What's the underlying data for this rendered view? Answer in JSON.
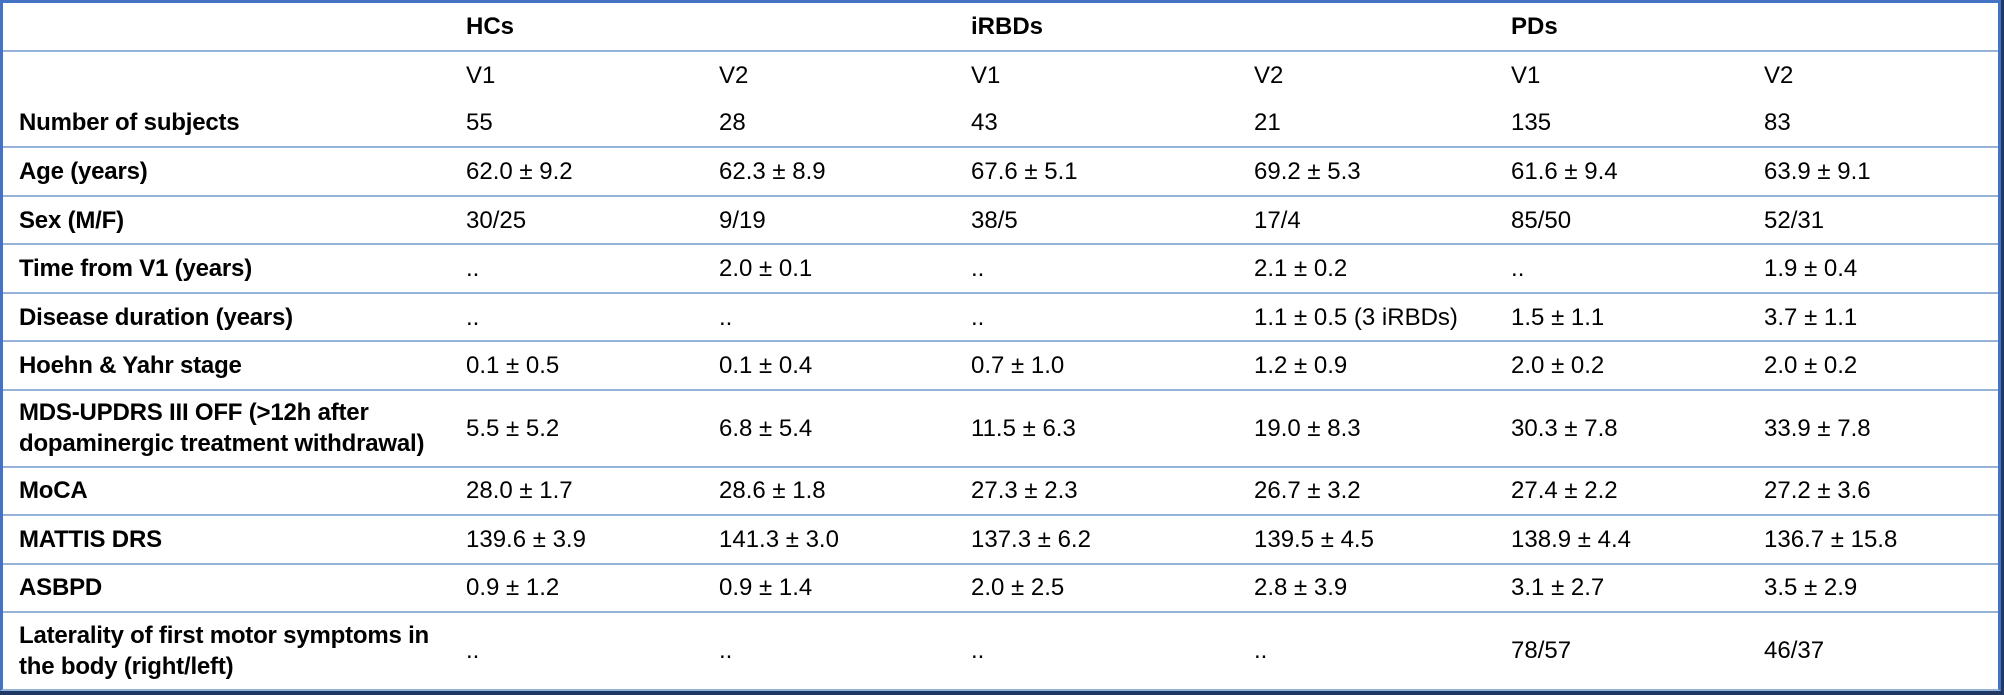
{
  "table": {
    "groups": [
      {
        "label": "HCs"
      },
      {
        "label": "iRBDs"
      },
      {
        "label": "PDs"
      }
    ],
    "visit_headers": [
      "V1",
      "V2",
      "V1",
      "V2",
      "V1",
      "V2"
    ],
    "rows": [
      {
        "label": "Number of subjects",
        "values": [
          "55",
          "28",
          "43",
          "21",
          "135",
          "83"
        ]
      },
      {
        "label": "Age (years)",
        "values": [
          "62.0 ± 9.2",
          "62.3 ± 8.9",
          "67.6 ± 5.1",
          "69.2 ± 5.3",
          "61.6 ± 9.4",
          "63.9 ± 9.1"
        ]
      },
      {
        "label": "Sex (M/F)",
        "values": [
          "30/25",
          "9/19",
          "38/5",
          "17/4",
          "85/50",
          "52/31"
        ]
      },
      {
        "label": "Time from V1 (years)",
        "values": [
          "..",
          "2.0 ± 0.1",
          "..",
          "2.1 ± 0.2",
          "..",
          "1.9 ± 0.4"
        ]
      },
      {
        "label": "Disease duration (years)",
        "values": [
          "..",
          "..",
          "..",
          "1.1 ± 0.5 (3 iRBDs)",
          "1.5 ± 1.1",
          "3.7 ± 1.1"
        ]
      },
      {
        "label": "Hoehn & Yahr stage",
        "values": [
          "0.1 ± 0.5",
          "0.1 ± 0.4",
          "0.7 ± 1.0",
          "1.2 ± 0.9",
          "2.0 ± 0.2",
          "2.0 ± 0.2"
        ]
      },
      {
        "label": "MDS-UPDRS III OFF (>12h after dopaminergic treatment withdrawal)",
        "values": [
          "5.5 ± 5.2",
          "6.8 ± 5.4",
          "11.5 ± 6.3",
          "19.0 ± 8.3",
          "30.3 ± 7.8",
          "33.9 ± 7.8"
        ]
      },
      {
        "label": "MoCA",
        "values": [
          "28.0 ± 1.7",
          "28.6 ± 1.8",
          "27.3 ± 2.3",
          "26.7 ± 3.2",
          "27.4 ± 2.2",
          "27.2 ± 3.6"
        ]
      },
      {
        "label": "MATTIS DRS",
        "values": [
          "139.6 ± 3.9",
          "141.3 ± 3.0",
          "137.3 ± 6.2",
          "139.5 ± 4.5",
          "138.9 ± 4.4",
          "136.7 ± 15.8"
        ]
      },
      {
        "label": "ASBPD",
        "values": [
          "0.9 ± 1.2",
          "0.9 ± 1.4",
          "2.0 ± 2.5",
          "2.8 ± 3.9",
          "3.1 ± 2.7",
          "3.5 ± 2.9"
        ]
      },
      {
        "label": "Laterality of first motor symptoms in the body (right/left)",
        "values": [
          "..",
          "..",
          "..",
          "..",
          "78/57",
          "46/37"
        ]
      }
    ],
    "colors": {
      "outer_border": "#4472C4",
      "row_separator": "#95B3D7",
      "bottom_border": "#1F3864",
      "background": "#FFFFFF",
      "text": "#000000"
    }
  }
}
